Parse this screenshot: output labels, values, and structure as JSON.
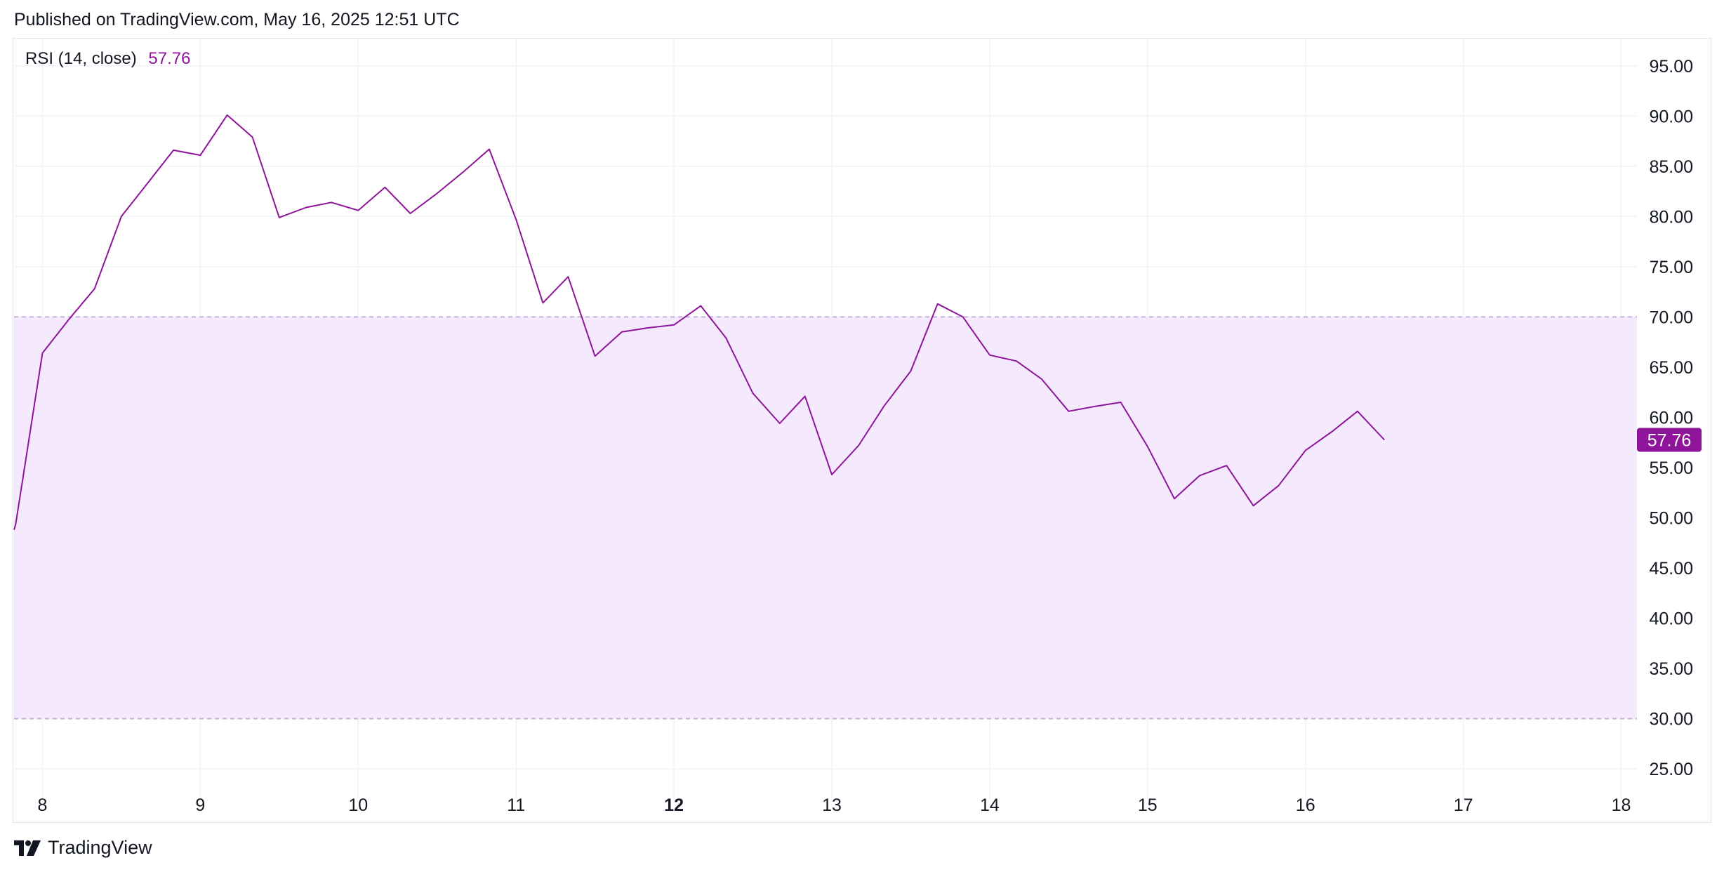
{
  "header": {
    "published": "Published on TradingView.com, May 16, 2025 12:51 UTC"
  },
  "legend": {
    "name": "RSI (14, close)",
    "value": "57.76"
  },
  "footer": {
    "brand": "TradingView"
  },
  "colors": {
    "line": "#8e1599",
    "band_fill": "#f3e5fd",
    "band_line": "#c5b2d6",
    "grid": "#f0f3fa",
    "axis_text": "#131722"
  },
  "chart_data": {
    "type": "line",
    "title": "",
    "xlabel": "",
    "ylabel": "",
    "ylim": [
      22,
      97.5
    ],
    "xlim": [
      7.82,
      18.1
    ],
    "x_ticks": [
      {
        "value": 8,
        "label": "8",
        "bold": false
      },
      {
        "value": 9,
        "label": "9",
        "bold": false
      },
      {
        "value": 10,
        "label": "10",
        "bold": false
      },
      {
        "value": 11,
        "label": "11",
        "bold": false
      },
      {
        "value": 12,
        "label": "12",
        "bold": true
      },
      {
        "value": 13,
        "label": "13",
        "bold": false
      },
      {
        "value": 14,
        "label": "14",
        "bold": false
      },
      {
        "value": 15,
        "label": "15",
        "bold": false
      },
      {
        "value": 16,
        "label": "16",
        "bold": false
      },
      {
        "value": 17,
        "label": "17",
        "bold": false
      },
      {
        "value": 18,
        "label": "18",
        "bold": false
      }
    ],
    "y_ticks": [
      "25.00",
      "30.00",
      "35.00",
      "40.00",
      "45.00",
      "50.00",
      "55.00",
      "60.00",
      "65.00",
      "70.00",
      "75.00",
      "80.00",
      "85.00",
      "90.00",
      "95.00"
    ],
    "bands": {
      "upper": 70,
      "lower": 30
    },
    "last_value": 57.76,
    "last_value_label": "57.76",
    "series": [
      {
        "x": [
          7.82,
          7.83,
          8.0,
          8.17,
          8.33,
          8.5,
          8.67,
          8.83,
          9.0,
          9.17,
          9.33,
          9.5,
          9.67,
          9.83,
          10.0,
          10.17,
          10.33,
          10.5,
          10.67,
          10.83,
          11.0,
          11.17,
          11.33,
          11.5,
          11.67,
          11.83,
          12.0,
          12.17,
          12.33,
          12.5,
          12.67,
          12.83,
          13.0,
          13.17,
          13.33,
          13.5,
          13.67,
          13.83,
          14.0,
          14.17,
          14.33,
          14.5,
          14.67,
          14.83,
          15.0,
          15.17,
          15.33,
          15.5,
          15.67,
          15.83,
          16.0,
          16.17,
          16.33,
          16.5
        ],
        "values": [
          48.8,
          49.3,
          66.4,
          69.8,
          72.8,
          80.0,
          83.4,
          86.6,
          86.1,
          90.1,
          87.9,
          79.9,
          80.9,
          81.4,
          80.6,
          82.9,
          80.3,
          82.3,
          84.5,
          86.7,
          79.7,
          71.4,
          74.0,
          66.1,
          68.5,
          68.9,
          69.2,
          71.1,
          67.9,
          62.4,
          59.4,
          62.1,
          54.3,
          57.2,
          61.1,
          64.6,
          71.3,
          70.0,
          66.2,
          65.6,
          63.8,
          60.6,
          61.1,
          61.5,
          57.1,
          51.9,
          54.2,
          55.2,
          51.2,
          53.2,
          56.7,
          58.6,
          60.6,
          57.76
        ]
      }
    ]
  }
}
